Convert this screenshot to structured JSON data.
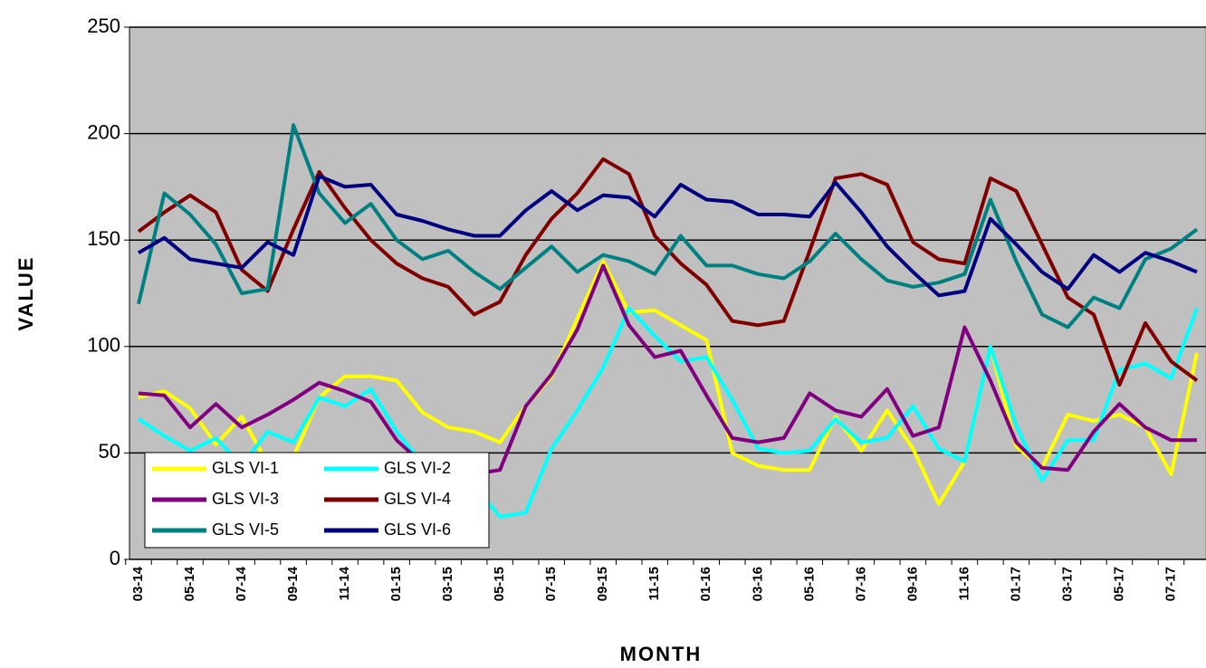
{
  "chart_data": {
    "type": "line",
    "x_label": "MONTH",
    "y_label": "VALUE",
    "categories": [
      "03-14",
      null,
      "05-14",
      null,
      "07-14",
      null,
      "09-14",
      null,
      "11-14",
      null,
      "01-15",
      null,
      "03-15",
      null,
      "05-15",
      null,
      "07-15",
      null,
      "09-15",
      null,
      "11-15",
      null,
      "01-16",
      null,
      "03-16",
      null,
      "05-16",
      null,
      "07-16",
      null,
      "09-16",
      null,
      "11-16",
      null,
      "01-17",
      null,
      "03-17",
      null,
      "05-17",
      null,
      "07-17",
      null
    ],
    "ylim": [
      0,
      250
    ],
    "yticks": [
      0,
      50,
      100,
      150,
      200,
      250
    ],
    "grid": true,
    "legend": "lower left",
    "series": [
      {
        "name": "GLS VI-1",
        "color": "#ffff00",
        "values": [
          76,
          79,
          71,
          54,
          67,
          45,
          48,
          76,
          86,
          86,
          84,
          69,
          62,
          60,
          55,
          72,
          86,
          113,
          140,
          116,
          117,
          110,
          103,
          50,
          44,
          42,
          42,
          67,
          51,
          70,
          52,
          26,
          46,
          100,
          53,
          43,
          68,
          65,
          68,
          62,
          40,
          97
        ]
      },
      {
        "name": "GLS VI-2",
        "color": "#00ffff",
        "values": [
          66,
          58,
          51,
          57,
          44,
          60,
          55,
          76,
          72,
          80,
          60,
          45,
          40,
          35,
          20,
          22,
          52,
          70,
          90,
          118,
          105,
          93,
          95,
          75,
          52,
          50,
          51,
          66,
          55,
          57,
          72,
          52,
          46,
          100,
          63,
          37,
          56,
          56,
          89,
          92,
          85,
          118
        ]
      },
      {
        "name": "GLS VI-3",
        "color": "#800080",
        "values": [
          78,
          77,
          62,
          73,
          62,
          68,
          75,
          83,
          79,
          74,
          56,
          45,
          40,
          40,
          42,
          72,
          87,
          108,
          138,
          110,
          95,
          98,
          77,
          57,
          55,
          57,
          78,
          70,
          67,
          80,
          58,
          62,
          109,
          84,
          55,
          43,
          42,
          60,
          73,
          62,
          56,
          56
        ]
      },
      {
        "name": "GLS VI-4",
        "color": "#800000",
        "values": [
          154,
          163,
          171,
          163,
          136,
          126,
          155,
          182,
          165,
          150,
          139,
          132,
          128,
          115,
          121,
          143,
          160,
          172,
          188,
          181,
          152,
          139,
          129,
          112,
          110,
          112,
          145,
          179,
          181,
          176,
          149,
          141,
          139,
          179,
          173,
          148,
          123,
          115,
          82,
          111,
          93,
          84
        ]
      },
      {
        "name": "GLS VI-5",
        "color": "#008080",
        "values": [
          120,
          172,
          162,
          148,
          125,
          127,
          204,
          172,
          158,
          167,
          150,
          141,
          145,
          135,
          127,
          137,
          147,
          135,
          143,
          140,
          134,
          152,
          138,
          138,
          134,
          132,
          140,
          153,
          141,
          131,
          128,
          130,
          134,
          169,
          140,
          115,
          109,
          123,
          118,
          141,
          146,
          155
        ]
      },
      {
        "name": "GLS VI-6",
        "color": "#000080",
        "values": [
          144,
          151,
          141,
          139,
          137,
          149,
          143,
          180,
          175,
          176,
          162,
          159,
          155,
          152,
          152,
          164,
          173,
          164,
          171,
          170,
          161,
          176,
          169,
          168,
          162,
          162,
          161,
          177,
          163,
          147,
          135,
          124,
          126,
          160,
          148,
          135,
          127,
          143,
          135,
          144,
          140,
          135
        ]
      }
    ]
  }
}
